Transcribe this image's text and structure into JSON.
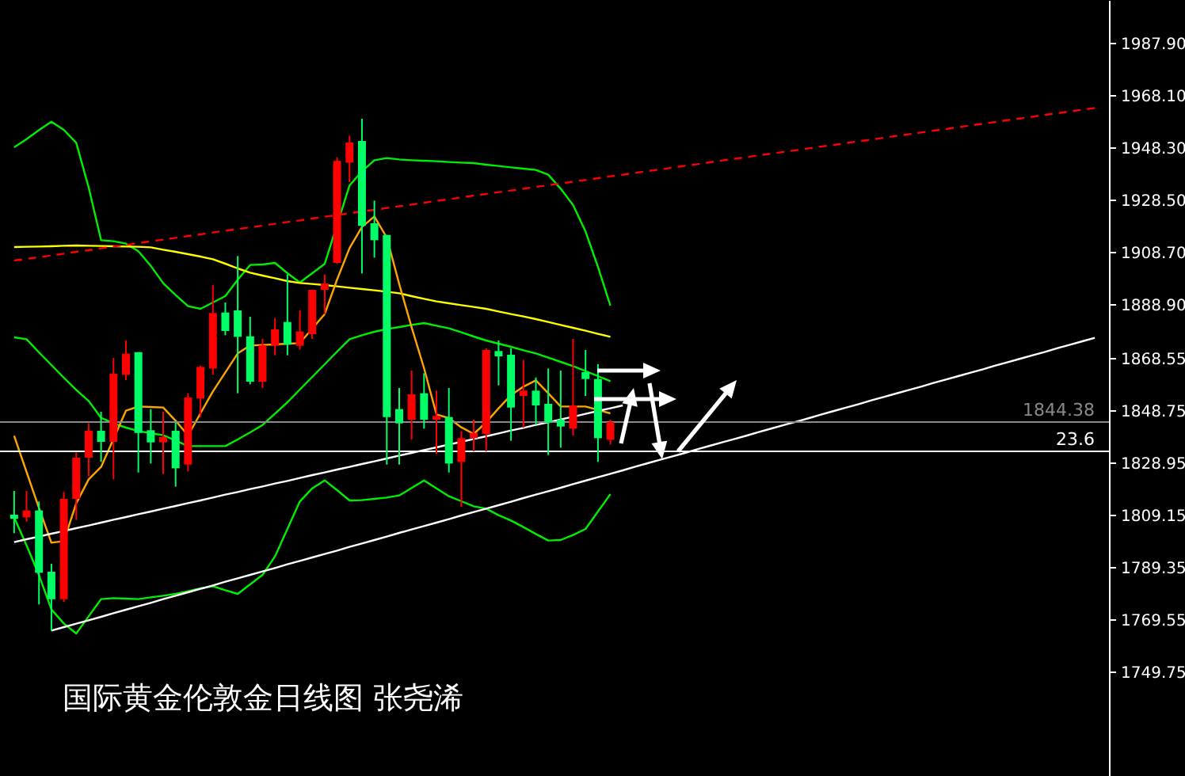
{
  "chart_data": {
    "type": "candlestick",
    "title": "国际黄金伦敦金日线图 张尧浠",
    "categories": [
      null,
      null,
      null,
      null,
      null,
      null,
      null,
      null,
      null,
      null,
      null,
      null,
      null,
      null,
      null,
      null,
      null,
      null,
      null,
      null,
      null,
      null,
      null,
      null,
      null,
      null,
      null,
      null,
      null,
      null,
      null,
      null,
      null,
      null,
      null,
      null,
      null,
      null,
      null,
      null,
      null,
      null,
      null,
      null,
      null,
      null,
      null,
      null,
      null,
      null,
      null,
      null,
      null,
      null,
      null,
      null,
      null,
      null,
      null,
      null,
      null,
      null,
      null,
      null,
      null,
      null,
      null,
      null,
      null,
      null,
      null,
      null,
      null,
      null,
      null,
      null,
      null,
      null,
      null,
      null,
      null,
      null,
      null,
      null,
      null,
      null,
      null,
      null
    ],
    "ohlc": [
      [
        1809.3,
        1818.3,
        1802.3,
        1807.7
      ],
      [
        1808.3,
        1818.3,
        1806.7,
        1810.9
      ],
      [
        1810.9,
        1814.3,
        1775.3,
        1787.3
      ],
      [
        1787.7,
        1790.7,
        1765.3,
        1777.3
      ],
      [
        1777.3,
        1817.9,
        1776.3,
        1815.3
      ],
      [
        1815.3,
        1832.9,
        1807.3,
        1830.9
      ],
      [
        1830.9,
        1843.9,
        1823.9,
        1841.1
      ],
      [
        1841.1,
        1848.3,
        1829.3,
        1836.9
      ],
      [
        1836.9,
        1868.7,
        1822.7,
        1862.7
      ],
      [
        1862.3,
        1875.3,
        1860.3,
        1870.3
      ],
      [
        1870.9,
        1870.9,
        1825.3,
        1840.3
      ],
      [
        1841.3,
        1849.3,
        1828.7,
        1836.7
      ],
      [
        1836.7,
        1848.3,
        1824.7,
        1838.7
      ],
      [
        1841.1,
        1844.3,
        1819.9,
        1826.9
      ],
      [
        1828.3,
        1855.3,
        1825.7,
        1853.7
      ],
      [
        1853.3,
        1865.7,
        1846.3,
        1865.3
      ],
      [
        1864.7,
        1896.3,
        1862.3,
        1885.7
      ],
      [
        1885.9,
        1889.7,
        1877.3,
        1878.9
      ],
      [
        1886.7,
        1907.3,
        1855.3,
        1876.7
      ],
      [
        1876.9,
        1884.3,
        1858.7,
        1859.7
      ],
      [
        1859.7,
        1875.9,
        1857.3,
        1873.5
      ],
      [
        1873.3,
        1883.7,
        1869.7,
        1879.5
      ],
      [
        1882.3,
        1900.3,
        1869.7,
        1873.7
      ],
      [
        1873.3,
        1886.7,
        1871.9,
        1878.7
      ],
      [
        1877.7,
        1894.5,
        1875.9,
        1894.5
      ],
      [
        1894.5,
        1900.3,
        1885.3,
        1896.9
      ],
      [
        1904.7,
        1944.7,
        1904.3,
        1943.3
      ],
      [
        1942.7,
        1952.9,
        1935.3,
        1950.3
      ],
      [
        1950.9,
        1959.3,
        1900.7,
        1918.7
      ],
      [
        1919.7,
        1928.3,
        1906.7,
        1913.3
      ],
      [
        1915.3,
        1915.3,
        1828.3,
        1846.3
      ],
      [
        1849.3,
        1857.3,
        1828.3,
        1843.9
      ],
      [
        1845.3,
        1863.9,
        1837.7,
        1854.9
      ],
      [
        1855.3,
        1862.9,
        1841.9,
        1845.3
      ],
      [
        1845.3,
        1856.3,
        1832.3,
        1846.7
      ],
      [
        1846.3,
        1857.3,
        1825.3,
        1828.7
      ],
      [
        1829.3,
        1840.9,
        1812.3,
        1838.3
      ],
      [
        1838.3,
        1845.3,
        1833.3,
        1840.3
      ],
      [
        1839.9,
        1872.3,
        1833.3,
        1871.7
      ],
      [
        1871.3,
        1875.3,
        1858.3,
        1869.3
      ],
      [
        1869.9,
        1872.3,
        1837.3,
        1849.9
      ],
      [
        1854.3,
        1867.9,
        1842.3,
        1856.3
      ],
      [
        1856.3,
        1861.3,
        1843.3,
        1850.7
      ],
      [
        1851.3,
        1864.7,
        1831.9,
        1844.3
      ],
      [
        1845.3,
        1863.9,
        1834.7,
        1842.7
      ],
      [
        1841.9,
        1875.9,
        1839.3,
        1850.7
      ],
      [
        1863.3,
        1871.7,
        1854.3,
        1860.7
      ],
      [
        1860.7,
        1866.3,
        1829.3,
        1838.3
      ],
      [
        1837.7,
        1845.3,
        1835.9,
        1844.4
      ],
      null,
      null,
      null,
      null,
      null,
      null,
      null,
      null,
      null,
      null,
      null,
      null,
      null,
      null,
      null,
      null,
      null,
      null,
      null,
      null,
      null,
      null,
      null,
      null,
      null,
      null,
      null,
      null,
      null,
      null,
      null,
      null,
      null,
      null,
      null,
      null,
      null,
      null,
      null
    ],
    "colors": [
      "#00ff66",
      "#ff0000",
      "#00ff66",
      "#00ff66",
      "#ff0000",
      "#ff0000",
      "#ff0000",
      "#00ff66",
      "#ff0000",
      "#ff0000",
      "#00ff66",
      "#00ff66",
      "#ff0000",
      "#00ff66",
      "#ff0000",
      "#ff0000",
      "#ff0000",
      "#00ff66",
      "#00ff66",
      "#00ff66",
      "#ff0000",
      "#ff0000",
      "#00ff66",
      "#ff0000",
      "#ff0000",
      "#ff0000",
      "#ff0000",
      "#ff0000",
      "#00ff66",
      "#00ff66",
      "#00ff66",
      "#00ff66",
      "#ff0000",
      "#00ff66",
      "#ff0000",
      "#00ff66",
      "#ff0000",
      "#ff0000",
      "#ff0000",
      "#00ff66",
      "#00ff66",
      "#ff0000",
      "#00ff66",
      "#00ff66",
      "#00ff66",
      "#ff0000",
      "#00ff66",
      "#00ff66",
      "#ff0000",
      null,
      null,
      null,
      null,
      null,
      null,
      null,
      null,
      null,
      null,
      null,
      null,
      null,
      null,
      null,
      null,
      null,
      null,
      null,
      null,
      null,
      null,
      null,
      null,
      null,
      null,
      null,
      null,
      null,
      null,
      null,
      null,
      null,
      null,
      null,
      null,
      null,
      null,
      null
    ],
    "series": [
      {
        "type": "line",
        "color": "#00ee00",
        "values": [
          1948.5,
          1951.6,
          1955.0,
          1958.2,
          1955.1,
          1950.2,
          1933.3,
          1913.3,
          1912.9,
          1912.0,
          1909.1,
          1903.6,
          1897.0,
          1892.5,
          1888.3,
          1887.3,
          1889.7,
          1892.1,
          1898.3,
          1903.9,
          1904.1,
          1904.7,
          1900.8,
          1897.3,
          1900.8,
          1904.3,
          null,
          1934.0,
          1939.4,
          1943.6,
          1944.4,
          1943.9,
          1943.6,
          1943.4,
          1943.2,
          1942.9,
          1942.7,
          1942.5,
          1941.9,
          1941.4,
          1940.9,
          1940.4,
          1939.9,
          1938.1,
          1932.8,
          1926.6,
          1916.6,
          1903.2,
          1888.5,
          null,
          null,
          null,
          null,
          null,
          null,
          null,
          null,
          null,
          null,
          null,
          null,
          null,
          null,
          null,
          null,
          null,
          null,
          null,
          null,
          null,
          null,
          null,
          null,
          null,
          null,
          null,
          null,
          null,
          null,
          null,
          null,
          null,
          null,
          null,
          null,
          null,
          null,
          null
        ]
      },
      {
        "type": "line",
        "color": "#00ee00",
        "values": [
          1876.5,
          1875.8,
          1870.8,
          1866.0,
          1861.2,
          1856.6,
          1852.4,
          1846.0,
          1843.9,
          1842.3,
          1841.0,
          1840.2,
          1839.4,
          1837.4,
          1835.3,
          1835.3,
          1835.3,
          1835.3,
          1837.8,
          1840.5,
          1843.3,
          1847.6,
          1851.9,
          1856.7,
          1861.5,
          1866.3,
          1871.1,
          1875.8,
          1877.3,
          1878.6,
          1879.6,
          1880.4,
          1881.2,
          1881.9,
          1880.9,
          1879.9,
          1878.4,
          1876.8,
          1875.3,
          1874.1,
          1872.9,
          1871.6,
          1870.4,
          1868.8,
          1867.2,
          1865.6,
          1863.7,
          1861.8,
          1859.9,
          null,
          null,
          null,
          null,
          null,
          null,
          null,
          null,
          null,
          null,
          null,
          null,
          null,
          null,
          null,
          null,
          null,
          null,
          null,
          null,
          null,
          null,
          null,
          null,
          null,
          null,
          null,
          null,
          null,
          null,
          null,
          null,
          null,
          null,
          null,
          null,
          null,
          null,
          null
        ]
      },
      {
        "type": "line",
        "color": "#00ee00",
        "values": [
          1808.3,
          1797.7,
          1786.4,
          1773.4,
          1768.1,
          1764.3,
          1770.8,
          1777.3,
          1777.7,
          1777.5,
          1777.3,
          1778.0,
          1778.6,
          1779.3,
          1780.3,
          1781.4,
          1782.2,
          1780.7,
          1779.3,
          1782.9,
          1786.5,
          1793.5,
          1803.9,
          1814.3,
          1819.3,
          1822.3,
          1818.6,
          1814.7,
          1814.8,
          1815.3,
          1815.8,
          1816.6,
          1819.4,
          1822.3,
          1819.3,
          1816.3,
          1814.4,
          1812.5,
          1811.6,
          1809.1,
          1807.1,
          1804.6,
          1802.0,
          1799.5,
          1799.7,
          1801.6,
          1803.9,
          1810.5,
          1817.1,
          null,
          null,
          null,
          null,
          null,
          null,
          null,
          null,
          null,
          null,
          null,
          null,
          null,
          null,
          null,
          null,
          null,
          null,
          null,
          null,
          null,
          null,
          null,
          null,
          null,
          null,
          null,
          null,
          null,
          null,
          null,
          null,
          null,
          null,
          null,
          null,
          null,
          null,
          null
        ]
      },
      {
        "type": "line",
        "color": "#ffff00",
        "values": [
          1910.7,
          1910.8,
          1910.9,
          1911.0,
          1911.2,
          1911.3,
          1911.2,
          1911.1,
          1911.0,
          1910.9,
          1910.8,
          1910.6,
          1909.7,
          1908.9,
          1908.0,
          1907.1,
          1906.1,
          1904.4,
          1902.6,
          1901.0,
          1899.9,
          1898.9,
          1897.8,
          1897.1,
          1896.7,
          1896.3,
          1895.8,
          1895.3,
          1894.8,
          1894.3,
          1893.8,
          1893.2,
          1892.1,
          1891.1,
          1890.1,
          1889.4,
          1888.7,
          1888.0,
          1887.3,
          1886.3,
          1885.3,
          1884.4,
          1883.4,
          1882.3,
          1881.2,
          1880.1,
          1879.0,
          1877.8,
          1876.7,
          null,
          null,
          null,
          null,
          null,
          null,
          null,
          null,
          null,
          null,
          null,
          null,
          null,
          null,
          null,
          null,
          null,
          null,
          null,
          null,
          null,
          null,
          null,
          null,
          null,
          null,
          null,
          null,
          null,
          null,
          null,
          null,
          null,
          null,
          null,
          null,
          null,
          null,
          null
        ]
      },
      {
        "type": "line",
        "color": "#ffa500",
        "values": [
          1839.2,
          1825.5,
          1811.8,
          1798.7,
          1799.3,
          1813.6,
          1822.7,
          1827.4,
          1838.0,
          1848.7,
          1850.3,
          1850.1,
          1849.9,
          1844.9,
          1839.3,
          1847.7,
          1856.0,
          1863.2,
          1870.4,
          1873.4,
          1873.6,
          1873.8,
          1874.1,
          1874.3,
          1879.8,
          1885.3,
          1898.4,
          1910.3,
          1918.3,
          1922.3,
          1914.3,
          1896.7,
          1880.3,
          1864.8,
          1847.3,
          1845.9,
          1842.4,
          1839.9,
          1844.3,
          1849.6,
          1854.6,
          1857.8,
          1860.2,
          1855.3,
          1850.3,
          1850.3,
          1850.3,
          1849.0,
          1847.7,
          null,
          null,
          null,
          null,
          null,
          null,
          null,
          null,
          null,
          null,
          null,
          null,
          null,
          null,
          null,
          null,
          null,
          null,
          null,
          null,
          null,
          null,
          null,
          null,
          null,
          null,
          null,
          null,
          null,
          null,
          null,
          null,
          null,
          null,
          null,
          null,
          null,
          null,
          null
        ]
      },
      {
        "type": "line",
        "color": "#ff0000",
        "line_style": "dashed",
        "values": [
          1905.6,
          1906.2,
          1906.9,
          1907.5,
          1908.2,
          1908.9,
          1909.5,
          1910.2,
          1910.9,
          1911.5,
          1912.2,
          1912.9,
          1913.5,
          1914.2,
          1914.9,
          1915.5,
          1916.2,
          1916.9,
          1917.5,
          1918.2,
          1918.8,
          1919.5,
          1920.2,
          1920.8,
          1921.5,
          1922.2,
          1922.8,
          1923.5,
          1924.2,
          1924.8,
          1925.5,
          1926.2,
          1926.8,
          1927.5,
          1928.2,
          1928.8,
          1929.5,
          1930.2,
          1930.8,
          1931.5,
          1932.1,
          1932.8,
          1933.5,
          1934.1,
          1934.8,
          1935.5,
          1936.1,
          1936.8,
          1937.5,
          1938.1,
          1938.8,
          1939.5,
          1940.1,
          1940.8,
          1941.5,
          1942.1,
          1942.8,
          1943.5,
          1944.1,
          1944.8,
          1945.5,
          1946.1,
          1946.8,
          1947.4,
          1948.1,
          1948.8,
          1949.4,
          1950.1,
          1950.8,
          1951.4,
          1952.1,
          1952.8,
          1953.4,
          1954.1,
          1954.8,
          1955.4,
          1956.1,
          1956.8,
          1957.4,
          1958.1,
          1958.8,
          1959.4,
          1960.1,
          1960.8,
          1961.4,
          1962.1,
          1962.7,
          1963.4
        ]
      },
      {
        "type": "line",
        "color": "#ffffff",
        "values": [
          1798.9,
          1800.0,
          1801.0,
          1802.1,
          1803.1,
          1804.2,
          1805.2,
          1806.3,
          1807.4,
          1808.4,
          1809.5,
          1810.5,
          1811.6,
          1812.6,
          1813.7,
          1814.7,
          1815.8,
          1816.9,
          1817.9,
          1819.0,
          1820.0,
          1821.1,
          1822.1,
          1823.2,
          1824.3,
          1825.3,
          1826.4,
          1827.4,
          1828.5,
          1829.5,
          1830.6,
          1831.7,
          1832.7,
          1833.8,
          1834.8,
          1835.9,
          1836.9,
          1838.0,
          1839.0,
          1840.1,
          1841.2,
          1842.2,
          1843.3,
          1844.3,
          1845.4,
          1846.4,
          1847.5,
          1848.6,
          1849.6,
          1850.7,
          null,
          null,
          null,
          null,
          null,
          null,
          null,
          null,
          null,
          null,
          null,
          null,
          null,
          null,
          null,
          null,
          null,
          null,
          null,
          null,
          null,
          null,
          null,
          null,
          null,
          null,
          null,
          null,
          null,
          null,
          null,
          null,
          null,
          null,
          null,
          null,
          null,
          null
        ]
      },
      {
        "type": "line",
        "color": "#ffffff",
        "values": [
          null,
          null,
          null,
          1765.4,
          1766.7,
          1768.0,
          1769.3,
          1770.6,
          1772.0,
          1773.3,
          1774.6,
          1775.9,
          1777.3,
          1778.6,
          1779.9,
          1781.2,
          1782.5,
          1783.9,
          1785.2,
          1786.5,
          1787.8,
          1789.1,
          1790.5,
          1791.8,
          1793.1,
          1794.4,
          1795.7,
          1797.1,
          1798.4,
          1799.7,
          1801.0,
          1802.4,
          1803.7,
          1805.0,
          1806.3,
          1807.6,
          1809.0,
          1810.3,
          1811.6,
          1812.9,
          1814.2,
          1815.6,
          1816.9,
          1818.2,
          1819.5,
          1820.9,
          1822.2,
          1823.5,
          1824.8,
          1826.1,
          1827.5,
          1828.8,
          1830.1,
          1831.4,
          1832.7,
          1834.1,
          1835.4,
          1836.7,
          1838.0,
          1839.3,
          1840.7,
          1842.0,
          1843.3,
          1844.6,
          1845.9,
          1847.3,
          1848.6,
          1849.9,
          1851.2,
          1852.6,
          1853.9,
          1855.2,
          1856.5,
          1857.8,
          1859.2,
          1860.5,
          1861.8,
          1863.1,
          1864.4,
          1865.8,
          1867.1,
          1868.4,
          1869.7,
          1871.0,
          1872.4,
          1873.7,
          1875.0,
          1876.3
        ]
      }
    ],
    "ref_lines": [
      {
        "axis": "y",
        "value": 1844.38,
        "label": "1844.38",
        "color": "#8a8a8a"
      },
      {
        "axis": "y",
        "value": 1833.3,
        "color": "#ffffff"
      }
    ],
    "annotations": [
      {
        "text": "23.6",
        "y": 1833.3
      }
    ],
    "ylim": [
      1710.3,
      2004.3
    ],
    "yticks": [
      {
        "value": 1987.9,
        "label": "1987.90"
      },
      {
        "value": 1968.1,
        "label": "1968.10"
      },
      {
        "value": 1948.3,
        "label": "1948.30"
      },
      {
        "value": 1928.5,
        "label": "1928.50"
      },
      {
        "value": 1908.7,
        "label": "1908.70"
      },
      {
        "value": 1888.9,
        "label": "1888.90"
      },
      {
        "value": 1868.55,
        "label": "1868.55"
      },
      {
        "value": 1848.75,
        "label": "1848.75"
      },
      {
        "value": 1828.95,
        "label": "1828.95"
      },
      {
        "value": 1809.15,
        "label": "1809.15"
      },
      {
        "value": 1789.35,
        "label": "1789.35"
      },
      {
        "value": 1769.55,
        "label": "1769.55"
      },
      {
        "value": 1749.75,
        "label": "1749.75"
      }
    ],
    "tick_labels": "y",
    "marker": "none"
  }
}
